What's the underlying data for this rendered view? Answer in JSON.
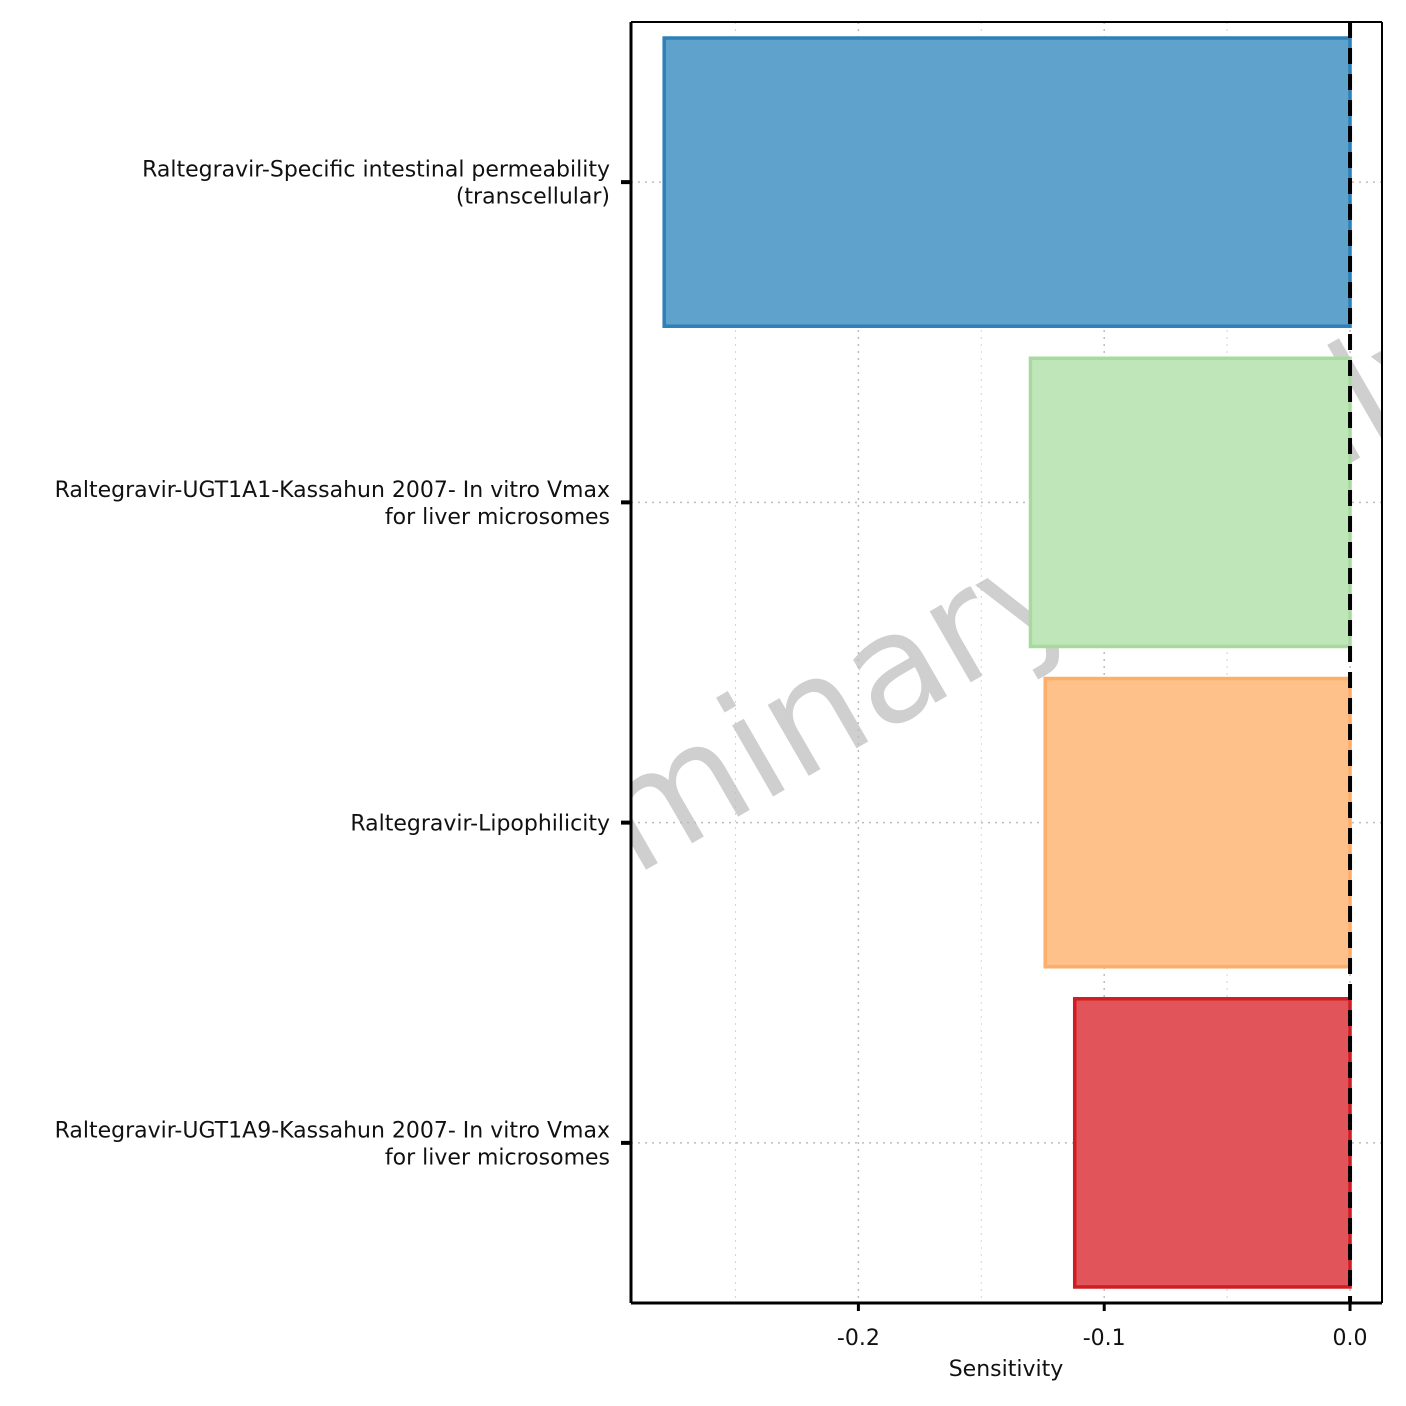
{
  "chart_data": {
    "type": "bar",
    "orientation": "horizontal",
    "categories": [
      [
        "Raltegravir-Specific intestinal permeability",
        "(transcellular)"
      ],
      [
        "Raltegravir-UGT1A1-Kassahun 2007- In vitro Vmax",
        "for liver microsomes"
      ],
      [
        "Raltegravir-Lipophilicity"
      ],
      [
        "Raltegravir-UGT1A9-Kassahun 2007- In vitro Vmax",
        "for liver microsomes"
      ]
    ],
    "values": [
      -0.279,
      -0.13,
      -0.124,
      -0.112
    ],
    "colors": [
      {
        "fill": "#5fa2cb",
        "stroke": "#2f7fb8"
      },
      {
        "fill": "#bfe6b8",
        "stroke": "#a8daa0"
      },
      {
        "fill": "#fdc189",
        "stroke": "#fcae6a"
      },
      {
        "fill": "#e15459",
        "stroke": "#d01c23"
      }
    ],
    "xlabel": "Sensitivity",
    "ylabel": "",
    "xlim": [
      -0.2925,
      0.013
    ],
    "xticks": [
      -0.2,
      -0.1,
      0.0
    ],
    "xtick_labels": [
      "-0.2",
      "-0.1",
      "0.0"
    ],
    "minor_gridlines": [
      -0.25,
      -0.15,
      -0.05
    ],
    "reference_line": 0.0,
    "grid": "dotted",
    "legend": "none",
    "watermark": "Preliminary analysis"
  }
}
